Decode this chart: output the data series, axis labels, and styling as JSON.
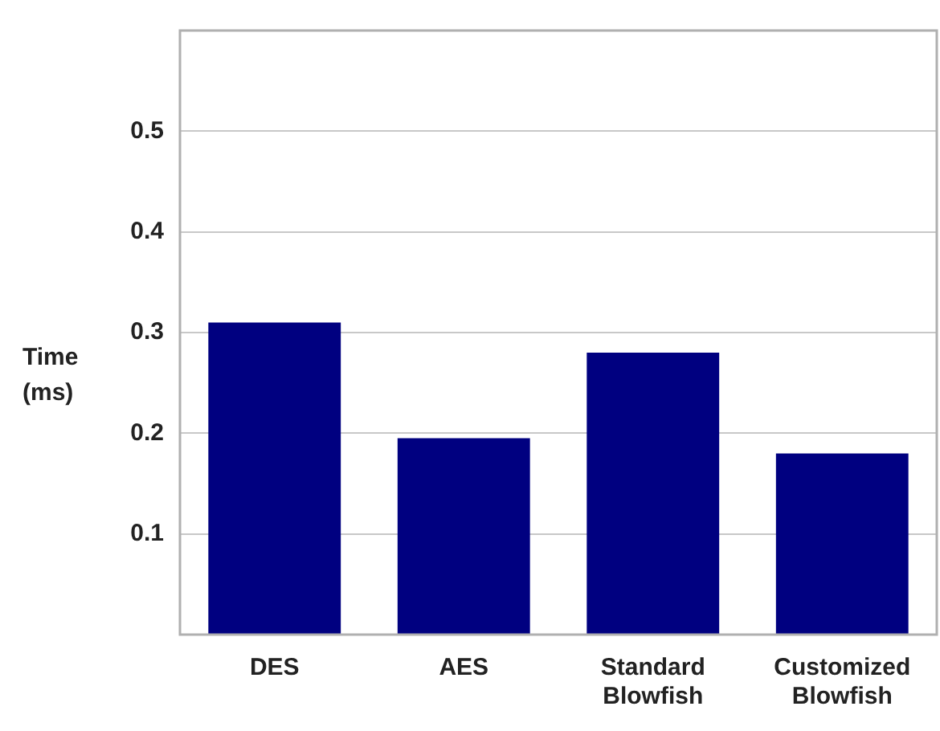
{
  "chart_data": {
    "type": "bar",
    "ylabel": "Time (ms)",
    "categories": [
      "DES",
      "AES",
      "Standard Blowfish",
      "Customized Blowfish"
    ],
    "values": [
      0.31,
      0.195,
      0.28,
      0.18
    ],
    "color": "#000080",
    "ylim": [
      0,
      0.6
    ],
    "yticks": [
      0.1,
      0.2,
      0.3,
      0.4,
      0.5
    ],
    "grid": "y",
    "legend": false
  }
}
